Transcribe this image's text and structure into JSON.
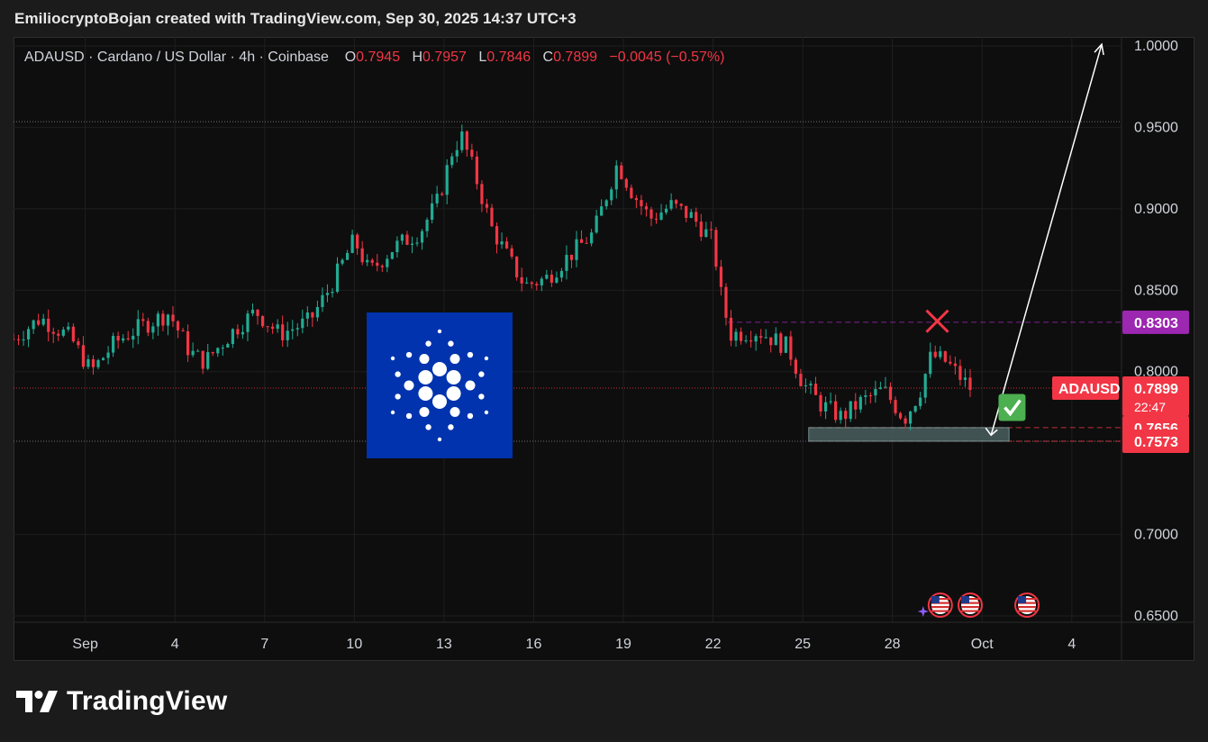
{
  "header": "EmiliocryptoBojan created with TradingView.com, Sep 30, 2025 14:37 UTC+3",
  "legend": {
    "symbol": "ADAUSD · Cardano / US Dollar · 4h · Coinbase",
    "o_label": "O",
    "o_value": "0.7945",
    "h_label": "H",
    "h_value": "0.7957",
    "l_label": "L",
    "l_value": "0.7846",
    "c_label": "C",
    "c_value": "0.7899",
    "change": "−0.0045 (−0.57%)"
  },
  "footer": {
    "brand": "TradingView"
  },
  "colors": {
    "up": "#22ab94",
    "down": "#f23645",
    "purple": "#9c27b0",
    "logo_bg": "#0033ad",
    "zone": "#3a4a4a",
    "check": "#4caf50"
  },
  "chart_data": {
    "type": "candlestick",
    "symbol": "ADAUSD",
    "interval": "4h",
    "ylim": [
      0.64,
      1.01
    ],
    "y_ticks": [
      "1.0000",
      "0.9500",
      "0.9000",
      "0.8500",
      "0.8000",
      "0.7000",
      "0.6500"
    ],
    "y_tick_values": [
      1.0,
      0.95,
      0.9,
      0.85,
      0.8,
      0.7,
      0.65
    ],
    "x_ticks": [
      "Sep",
      "4",
      "7",
      "10",
      "13",
      "16",
      "19",
      "22",
      "25",
      "28",
      "Oct",
      "4"
    ],
    "x_tick_days": [
      1,
      4,
      7,
      10,
      13,
      16,
      19,
      22,
      25,
      28,
      31,
      34
    ],
    "xlim_days": [
      -1.4,
      35.0
    ],
    "price_tags": [
      {
        "label": "0.8303",
        "value": 0.8303,
        "color": "#9c27b0"
      },
      {
        "label": "0.7899",
        "value": 0.7899,
        "color": "#f23645",
        "symbol": "ADAUSD",
        "countdown": "22:47"
      },
      {
        "label": "0.7656",
        "value": 0.7656,
        "color": "#f23645"
      },
      {
        "label": "0.7573",
        "value": 0.7573,
        "color": "#f23645"
      }
    ],
    "reference_lines": [
      {
        "value": 0.9535,
        "style": "dotted"
      },
      {
        "value": 0.8303,
        "style": "dashed",
        "color": "#9c27b0",
        "from_day": 22.5
      },
      {
        "value": 0.7899,
        "style": "dotted",
        "color": "#f23645"
      },
      {
        "value": 0.7656,
        "style": "dashed",
        "color": "#f23645",
        "from_day": 25.2
      },
      {
        "value": 0.7573,
        "style": "dotted"
      },
      {
        "value": 0.7573,
        "style": "dashed",
        "color": "#f23645",
        "from_day": 25.2
      }
    ],
    "support_zone": {
      "from_day": 25.2,
      "to_day": 31.9,
      "low": 0.7573,
      "high": 0.7656
    },
    "arrow": {
      "from": {
        "day": 31.3,
        "price": 0.761
      },
      "to": {
        "day": 35.0,
        "price": 1.001
      }
    },
    "markers": [
      {
        "type": "cross",
        "day": 29.5,
        "price": 0.831
      },
      {
        "type": "check",
        "day": 32.0,
        "price": 0.778
      }
    ],
    "events": [
      {
        "type": "economic-event-us",
        "day": 29.6
      },
      {
        "type": "economic-event-us",
        "day": 30.6
      },
      {
        "type": "economic-event-us",
        "day": 32.5
      }
    ],
    "path_points": [
      [
        -1.4,
        0.82
      ],
      [
        -0.5,
        0.833
      ],
      [
        0.5,
        0.821
      ],
      [
        1.2,
        0.8
      ],
      [
        2.0,
        0.818
      ],
      [
        2.8,
        0.827
      ],
      [
        3.8,
        0.836
      ],
      [
        4.5,
        0.812
      ],
      [
        5.0,
        0.806
      ],
      [
        6.0,
        0.826
      ],
      [
        6.7,
        0.837
      ],
      [
        7.5,
        0.823
      ],
      [
        8.5,
        0.831
      ],
      [
        9.2,
        0.852
      ],
      [
        10.0,
        0.881
      ],
      [
        10.5,
        0.861
      ],
      [
        11.3,
        0.876
      ],
      [
        12.2,
        0.886
      ],
      [
        12.8,
        0.905
      ],
      [
        13.3,
        0.937
      ],
      [
        13.6,
        0.944
      ],
      [
        14.0,
        0.923
      ],
      [
        14.6,
        0.888
      ],
      [
        15.2,
        0.868
      ],
      [
        15.7,
        0.853
      ],
      [
        16.4,
        0.857
      ],
      [
        17.0,
        0.868
      ],
      [
        18.0,
        0.885
      ],
      [
        18.8,
        0.928
      ],
      [
        19.3,
        0.91
      ],
      [
        19.9,
        0.894
      ],
      [
        20.6,
        0.902
      ],
      [
        21.3,
        0.895
      ],
      [
        22.0,
        0.88
      ],
      [
        22.3,
        0.843
      ],
      [
        22.6,
        0.823
      ],
      [
        23.5,
        0.825
      ],
      [
        24.5,
        0.815
      ],
      [
        25.0,
        0.793
      ],
      [
        25.6,
        0.78
      ],
      [
        26.3,
        0.772
      ],
      [
        26.9,
        0.781
      ],
      [
        27.7,
        0.789
      ],
      [
        28.4,
        0.771
      ],
      [
        28.9,
        0.787
      ],
      [
        29.3,
        0.81
      ],
      [
        29.8,
        0.806
      ],
      [
        30.3,
        0.796
      ],
      [
        30.6,
        0.79
      ]
    ]
  }
}
